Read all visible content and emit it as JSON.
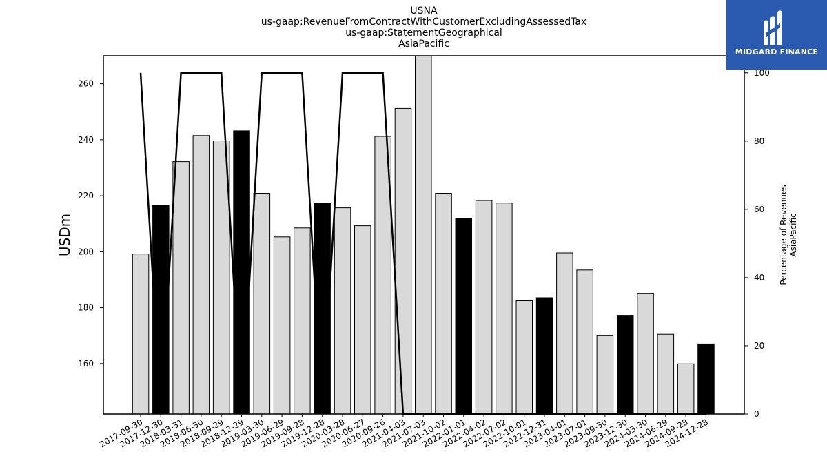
{
  "header": {
    "title_lines": [
      "USNA",
      "us-gaap:RevenueFromContractWithCustomerExcludingAssessedTax",
      "us-gaap:StatementGeographical",
      "AsiaPacific"
    ]
  },
  "logo": {
    "text": "MIDGARD FINANCE",
    "icon": "midgard-logo-icon",
    "color": "#2b5bb0"
  },
  "chart_data": {
    "type": "bar",
    "categories": [
      "2017-09-30",
      "2017-12-30",
      "2018-03-31",
      "2018-06-30",
      "2018-09-29",
      "2018-12-29",
      "2019-03-30",
      "2019-06-29",
      "2019-09-28",
      "2019-12-28",
      "2020-03-28",
      "2020-06-27",
      "2020-09-26",
      "2021-04-03",
      "2021-07-03",
      "2021-10-02",
      "2022-01-01",
      "2022-04-02",
      "2022-07-02",
      "2022-10-01",
      "2022-12-31",
      "2023-04-01",
      "2023-07-01",
      "2023-09-30",
      "2023-12-30",
      "2024-03-30",
      "2024-06-29",
      "2024-09-28",
      "2024-12-28"
    ],
    "series": [
      {
        "values": [
          199.2,
          216.7,
          232.2,
          241.5,
          239.6,
          243.2,
          220.9,
          205.3,
          208.5,
          217.2,
          215.7,
          209.3,
          241.2,
          251.2,
          270.0,
          220.9,
          212.0,
          218.3,
          217.4,
          182.5,
          183.6,
          199.6,
          193.5,
          170.0,
          177.3,
          185.0,
          170.5,
          159.9,
          167.0
        ],
        "colors": [
          "#d9d9d9",
          "#000000",
          "#d9d9d9",
          "#d9d9d9",
          "#d9d9d9",
          "#000000",
          "#d9d9d9",
          "#d9d9d9",
          "#d9d9d9",
          "#000000",
          "#d9d9d9",
          "#d9d9d9",
          "#d9d9d9",
          "#d9d9d9",
          "#d9d9d9",
          "#d9d9d9",
          "#000000",
          "#d9d9d9",
          "#d9d9d9",
          "#d9d9d9",
          "#000000",
          "#d9d9d9",
          "#d9d9d9",
          "#d9d9d9",
          "#000000",
          "#d9d9d9",
          "#d9d9d9",
          "#d9d9d9",
          "#000000"
        ],
        "axis": "left"
      },
      {
        "type": "line",
        "values": [
          100,
          0,
          100,
          100,
          100,
          0,
          100,
          100,
          100,
          0,
          100,
          100,
          100,
          0,
          0,
          0,
          0,
          0,
          0,
          0,
          0,
          0,
          0,
          0,
          0,
          0,
          0,
          0,
          0
        ],
        "color": "#000000",
        "axis": "right"
      }
    ],
    "ylabel": "USDm",
    "ylabel_right": [
      "Percentage of Revenues",
      "AsiaPacific"
    ],
    "ylim": [
      142,
      270
    ],
    "ylim_right": [
      0,
      105
    ],
    "yticks": [
      160,
      180,
      200,
      220,
      240,
      260
    ],
    "yticks_right": [
      0,
      20,
      40,
      60,
      80,
      100
    ],
    "grid": false,
    "legend": "none"
  }
}
